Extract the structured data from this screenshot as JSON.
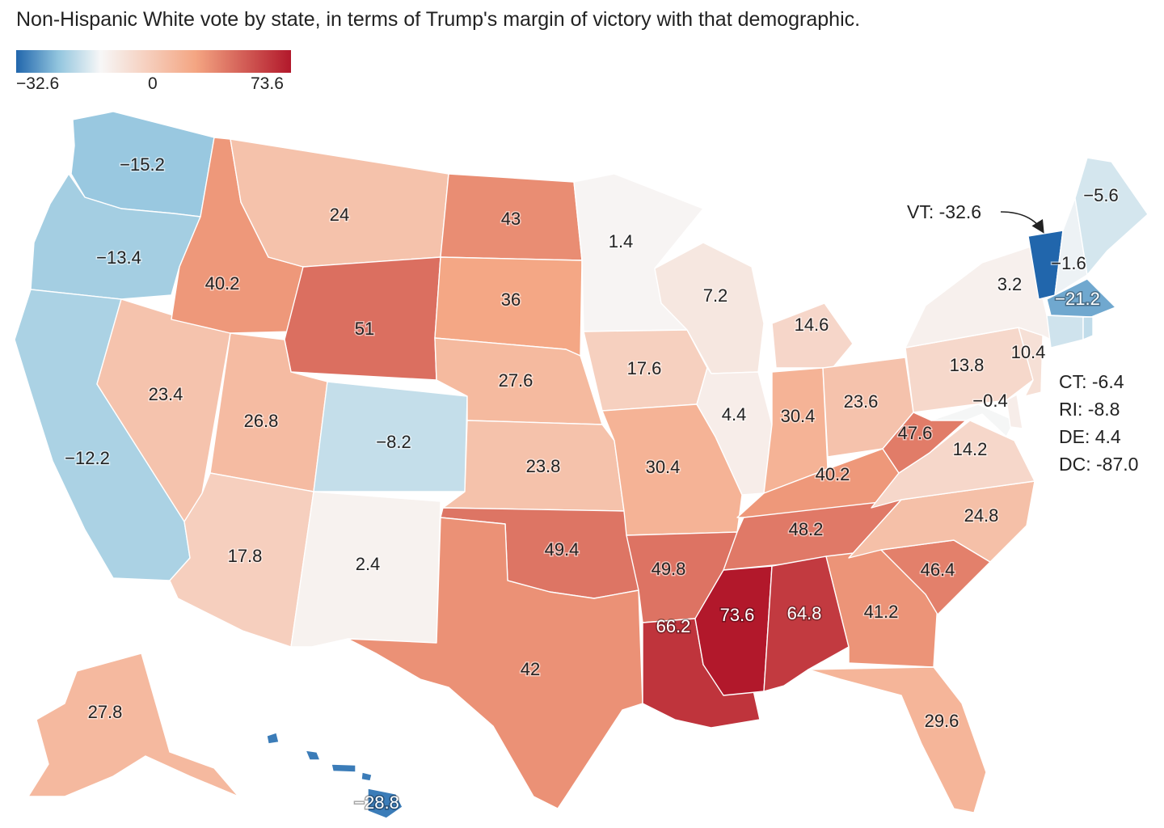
{
  "title": "Non-Hispanic White vote by state, in terms of Trump's margin of victory with that demographic.",
  "legend": {
    "min_label": "−32.6",
    "mid_label": "0",
    "max_label": "73.6",
    "min": -32.6,
    "max": 73.6,
    "colors": [
      "#2166ac",
      "#92c5de",
      "#f7f7f7",
      "#f4a582",
      "#b2182b"
    ]
  },
  "chart_data": {
    "type": "choropleth",
    "states": [
      {
        "code": "WA",
        "label": "−15.2",
        "value": -15.2
      },
      {
        "code": "OR",
        "label": "−13.4",
        "value": -13.4
      },
      {
        "code": "CA",
        "label": "−12.2",
        "value": -12.2
      },
      {
        "code": "NV",
        "label": "23.4",
        "value": 23.4
      },
      {
        "code": "ID",
        "label": "40.2",
        "value": 40.2
      },
      {
        "code": "MT",
        "label": "24",
        "value": 24
      },
      {
        "code": "WY",
        "label": "51",
        "value": 51
      },
      {
        "code": "UT",
        "label": "26.8",
        "value": 26.8
      },
      {
        "code": "AZ",
        "label": "17.8",
        "value": 17.8
      },
      {
        "code": "CO",
        "label": "−8.2",
        "value": -8.2
      },
      {
        "code": "NM",
        "label": "2.4",
        "value": 2.4
      },
      {
        "code": "ND",
        "label": "43",
        "value": 43
      },
      {
        "code": "SD",
        "label": "36",
        "value": 36
      },
      {
        "code": "NE",
        "label": "27.6",
        "value": 27.6
      },
      {
        "code": "KS",
        "label": "23.8",
        "value": 23.8
      },
      {
        "code": "OK",
        "label": "49.4",
        "value": 49.4
      },
      {
        "code": "TX",
        "label": "42",
        "value": 42
      },
      {
        "code": "MN",
        "label": "1.4",
        "value": 1.4
      },
      {
        "code": "IA",
        "label": "17.6",
        "value": 17.6
      },
      {
        "code": "MO",
        "label": "30.4",
        "value": 30.4
      },
      {
        "code": "AR",
        "label": "49.8",
        "value": 49.8
      },
      {
        "code": "LA",
        "label": "66.2",
        "value": 66.2
      },
      {
        "code": "WI",
        "label": "7.2",
        "value": 7.2
      },
      {
        "code": "IL",
        "label": "4.4",
        "value": 4.4
      },
      {
        "code": "MI",
        "label": "14.6",
        "value": 14.6
      },
      {
        "code": "IN",
        "label": "30.4",
        "value": 30.4
      },
      {
        "code": "OH",
        "label": "23.6",
        "value": 23.6
      },
      {
        "code": "KY",
        "label": "40.2",
        "value": 40.2
      },
      {
        "code": "TN",
        "label": "48.2",
        "value": 48.2
      },
      {
        "code": "MS",
        "label": "73.6",
        "value": 73.6
      },
      {
        "code": "AL",
        "label": "64.8",
        "value": 64.8
      },
      {
        "code": "GA",
        "label": "41.2",
        "value": 41.2
      },
      {
        "code": "FL",
        "label": "29.6",
        "value": 29.6
      },
      {
        "code": "SC",
        "label": "46.4",
        "value": 46.4
      },
      {
        "code": "NC",
        "label": "24.8",
        "value": 24.8
      },
      {
        "code": "VA",
        "label": "14.2",
        "value": 14.2
      },
      {
        "code": "WV",
        "label": "47.6",
        "value": 47.6
      },
      {
        "code": "MD",
        "label": "−0.4",
        "value": -0.4
      },
      {
        "code": "PA",
        "label": "13.8",
        "value": 13.8
      },
      {
        "code": "NJ",
        "label": "10.4",
        "value": 10.4
      },
      {
        "code": "NY",
        "label": "3.2",
        "value": 3.2
      },
      {
        "code": "VT",
        "label": "",
        "value": -32.6
      },
      {
        "code": "NH",
        "label": "−1.6",
        "value": -1.6
      },
      {
        "code": "ME",
        "label": "−5.6",
        "value": -5.6
      },
      {
        "code": "MA",
        "label": "−21.2",
        "value": -21.2
      },
      {
        "code": "CT",
        "label": "",
        "value": -6.4
      },
      {
        "code": "RI",
        "label": "",
        "value": -8.8
      },
      {
        "code": "DE",
        "label": "",
        "value": 4.4
      },
      {
        "code": "AK",
        "label": "27.8",
        "value": 27.8
      },
      {
        "code": "HI",
        "label": "−28.8",
        "value": -28.8
      }
    ],
    "callouts": [
      "VT: -32.6"
    ],
    "side_notes": [
      "CT: -6.4",
      "RI: -8.8",
      "DE: 4.4",
      "DC: -87.0"
    ]
  }
}
